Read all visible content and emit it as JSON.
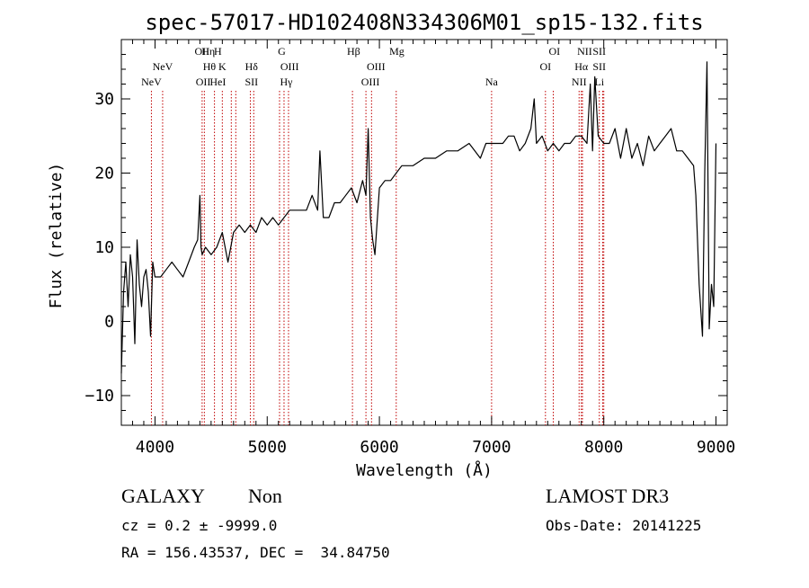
{
  "chart_data": {
    "type": "line",
    "title": "spec-57017-HD102408N334306M01_sp15-132.fits",
    "xlabel": "Wavelength (Å)",
    "ylabel": "Flux (relative)",
    "xlim": [
      3700,
      9100
    ],
    "ylim": [
      -14,
      38
    ],
    "x_ticks": [
      4000,
      5000,
      6000,
      7000,
      8000,
      9000
    ],
    "y_ticks": [
      -10,
      0,
      10,
      20,
      30
    ],
    "series": [
      {
        "name": "spectrum",
        "x": [
          3700,
          3720,
          3740,
          3760,
          3780,
          3800,
          3820,
          3840,
          3860,
          3880,
          3900,
          3920,
          3940,
          3960,
          3980,
          4000,
          4050,
          4100,
          4150,
          4200,
          4250,
          4300,
          4350,
          4380,
          4400,
          4410,
          4420,
          4450,
          4500,
          4550,
          4600,
          4650,
          4700,
          4750,
          4800,
          4850,
          4900,
          4950,
          5000,
          5050,
          5100,
          5150,
          5200,
          5250,
          5300,
          5350,
          5400,
          5450,
          5470,
          5500,
          5550,
          5600,
          5650,
          5700,
          5750,
          5800,
          5850,
          5880,
          5900,
          5920,
          5940,
          5960,
          6000,
          6050,
          6100,
          6150,
          6200,
          6300,
          6400,
          6500,
          6600,
          6700,
          6800,
          6850,
          6900,
          6950,
          7000,
          7050,
          7100,
          7150,
          7200,
          7250,
          7300,
          7350,
          7380,
          7400,
          7450,
          7500,
          7550,
          7600,
          7650,
          7700,
          7750,
          7800,
          7850,
          7880,
          7900,
          7920,
          7950,
          8000,
          8050,
          8100,
          8150,
          8200,
          8250,
          8300,
          8350,
          8400,
          8450,
          8500,
          8550,
          8600,
          8650,
          8700,
          8750,
          8800,
          8820,
          8850,
          8880,
          8900,
          8920,
          8940,
          8960,
          8980,
          9000
        ],
        "y": [
          -7,
          4,
          8,
          2,
          9,
          6,
          -3,
          11,
          5,
          2,
          6,
          7,
          4,
          -2,
          8,
          6,
          6,
          7,
          8,
          7,
          6,
          8,
          10,
          11,
          17,
          10,
          9,
          10,
          9,
          10,
          12,
          8,
          12,
          13,
          12,
          13,
          12,
          14,
          13,
          14,
          13,
          14,
          15,
          15,
          15,
          15,
          17,
          15,
          23,
          14,
          14,
          16,
          16,
          17,
          18,
          16,
          19,
          17,
          26,
          14,
          11,
          9,
          18,
          19,
          19,
          20,
          21,
          21,
          22,
          22,
          23,
          23,
          24,
          23,
          22,
          24,
          24,
          24,
          24,
          25,
          25,
          23,
          24,
          26,
          30,
          24,
          25,
          23,
          24,
          23,
          24,
          24,
          25,
          25,
          24,
          32,
          23,
          33,
          25,
          24,
          24,
          26,
          22,
          26,
          22,
          24,
          21,
          25,
          23,
          24,
          25,
          26,
          23,
          23,
          22,
          21,
          17,
          5,
          -2,
          20,
          35,
          -1,
          5,
          2,
          24
        ],
        "color": "#000000"
      }
    ],
    "line_marks": [
      {
        "label": "NeV",
        "x": 3968,
        "row": 3
      },
      {
        "label": "NeV",
        "x": 4068,
        "row": 2
      },
      {
        "label": "OII",
        "x": 4420,
        "row": 1
      },
      {
        "label": "Hη",
        "x": 4475,
        "row": 1
      },
      {
        "label": "H",
        "x": 4560,
        "row": 1
      },
      {
        "label": "Hθ",
        "x": 4485,
        "row": 2
      },
      {
        "label": "K",
        "x": 4600,
        "row": 2
      },
      {
        "label": "OII",
        "x": 4430,
        "row": 3
      },
      {
        "label": "HeI",
        "x": 4560,
        "row": 3
      },
      {
        "label": "Hδ",
        "x": 4860,
        "row": 2
      },
      {
        "label": "SII",
        "x": 4860,
        "row": 3
      },
      {
        "label": "G",
        "x": 5130,
        "row": 1
      },
      {
        "label": "OIII",
        "x": 5200,
        "row": 2
      },
      {
        "label": "Hγ",
        "x": 5170,
        "row": 3
      },
      {
        "label": "Hβ",
        "x": 5770,
        "row": 1
      },
      {
        "label": "OIII",
        "x": 5970,
        "row": 2
      },
      {
        "label": "OIII",
        "x": 5920,
        "row": 3
      },
      {
        "label": "Mg",
        "x": 6155,
        "row": 1
      },
      {
        "label": "Na",
        "x": 7000,
        "row": 3
      },
      {
        "label": "OI",
        "x": 7560,
        "row": 1
      },
      {
        "label": "OI",
        "x": 7480,
        "row": 2
      },
      {
        "label": "NII",
        "x": 7830,
        "row": 1
      },
      {
        "label": "SII",
        "x": 7960,
        "row": 1
      },
      {
        "label": "Hα",
        "x": 7800,
        "row": 2
      },
      {
        "label": "SII",
        "x": 7960,
        "row": 2
      },
      {
        "label": "NII",
        "x": 7780,
        "row": 3
      },
      {
        "label": "Li",
        "x": 7960,
        "row": 3
      }
    ],
    "line_positions": [
      3968,
      4068,
      4420,
      4440,
      4530,
      4600,
      4680,
      4720,
      4850,
      4880,
      5110,
      5150,
      5190,
      5760,
      5880,
      5930,
      6150,
      7000,
      7480,
      7550,
      7780,
      7800,
      7810,
      7960,
      7990,
      8000
    ],
    "marker_color": "#c00000"
  },
  "footer": {
    "object_class": "GALAXY",
    "subclass": "Non",
    "survey": "LAMOST DR3",
    "cz": "cz = 0.2 ± -9999.0",
    "obs_date": "Obs-Date: 20141225",
    "coords": "RA = 156.43537, DEC =  34.84750"
  }
}
